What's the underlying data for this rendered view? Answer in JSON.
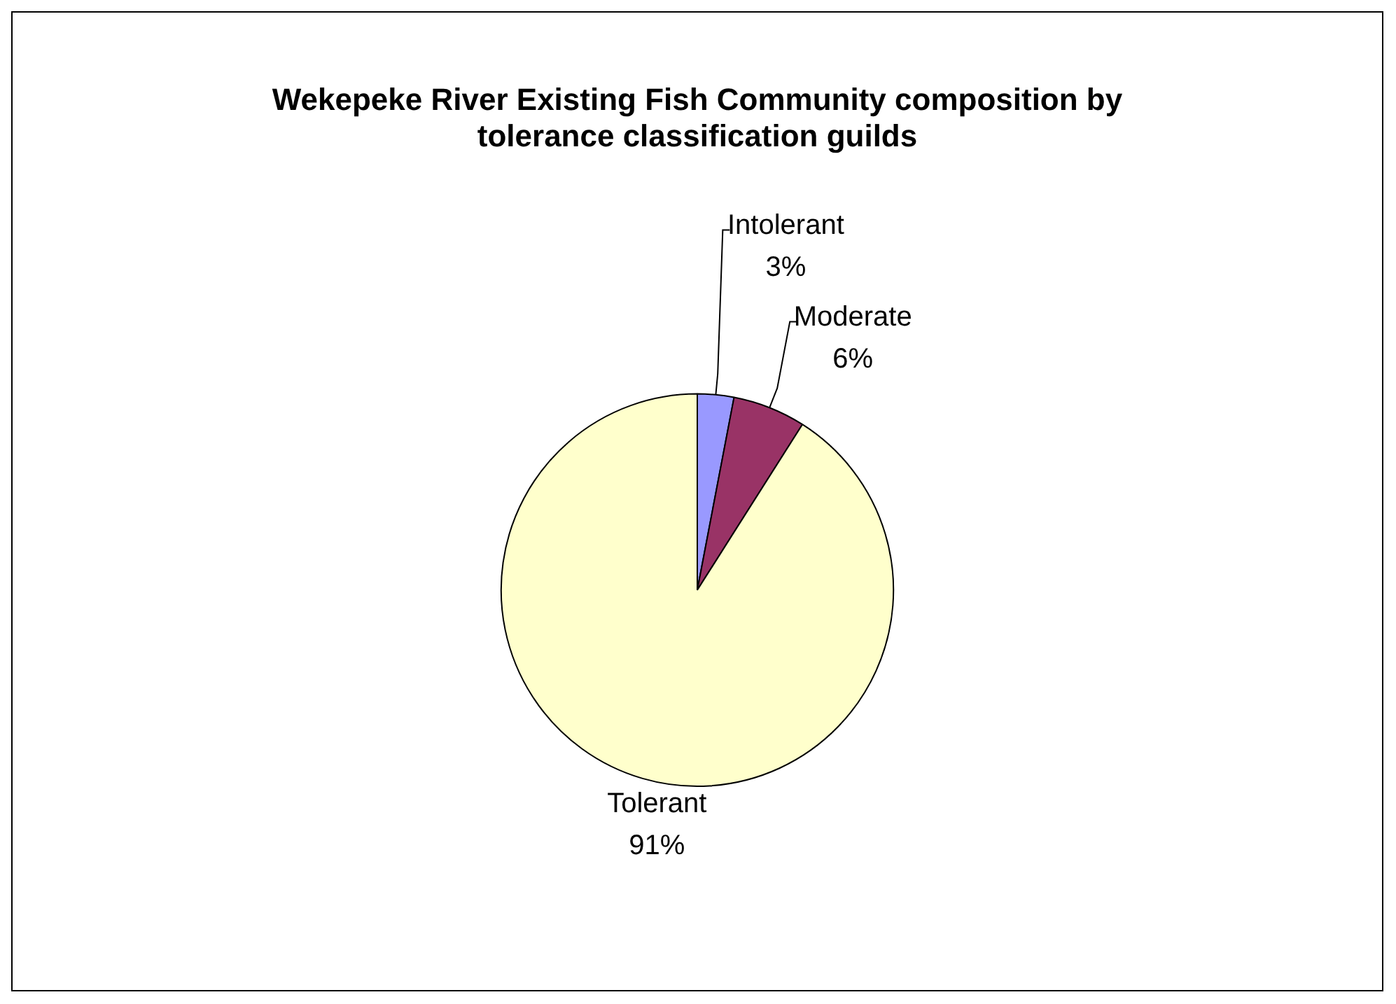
{
  "chart_data": {
    "type": "pie",
    "title": "Wekepeke River Existing Fish Community composition by tolerance classification guilds",
    "categories": [
      "Intolerant",
      "Moderate",
      "Tolerant"
    ],
    "values": [
      3,
      6,
      91
    ],
    "value_labels": [
      "3%",
      "6%",
      "91%"
    ],
    "colors": [
      "#9999ff",
      "#993366",
      "#ffffcc"
    ],
    "legend": false
  }
}
